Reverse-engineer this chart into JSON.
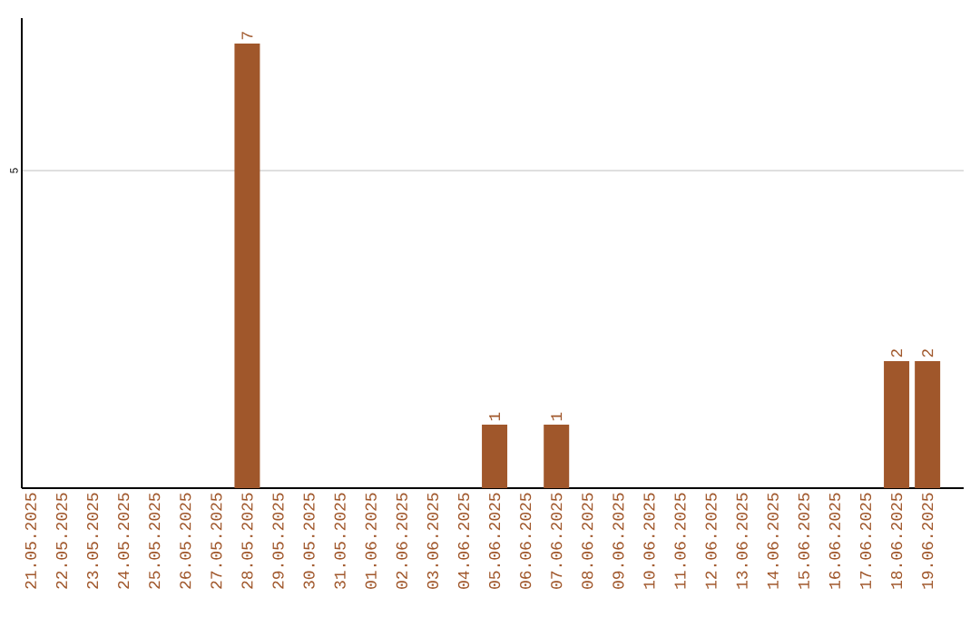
{
  "chart_data": {
    "type": "bar",
    "categories": [
      "21.05.2025",
      "22.05.2025",
      "23.05.2025",
      "24.05.2025",
      "25.05.2025",
      "26.05.2025",
      "27.05.2025",
      "28.05.2025",
      "29.05.2025",
      "30.05.2025",
      "31.05.2025",
      "01.06.2025",
      "02.06.2025",
      "03.06.2025",
      "04.06.2025",
      "05.06.2025",
      "06.06.2025",
      "07.06.2025",
      "08.06.2025",
      "09.06.2025",
      "10.06.2025",
      "11.06.2025",
      "12.06.2025",
      "13.06.2025",
      "14.06.2025",
      "15.06.2025",
      "16.06.2025",
      "17.06.2025",
      "18.06.2025",
      "19.06.2025"
    ],
    "values": [
      0,
      0,
      0,
      0,
      0,
      0,
      0,
      7,
      0,
      0,
      0,
      0,
      0,
      0,
      0,
      1,
      0,
      1,
      0,
      0,
      0,
      0,
      0,
      0,
      0,
      0,
      0,
      0,
      2,
      2
    ],
    "value_labels": [
      null,
      null,
      null,
      null,
      null,
      null,
      null,
      "7",
      null,
      null,
      null,
      null,
      null,
      null,
      null,
      "1",
      null,
      "1",
      null,
      null,
      null,
      null,
      null,
      null,
      null,
      null,
      null,
      null,
      "2",
      "2"
    ],
    "color": "#a0572b",
    "ylim": [
      0,
      7.4
    ],
    "yticks": [
      5
    ],
    "grid": "y"
  }
}
